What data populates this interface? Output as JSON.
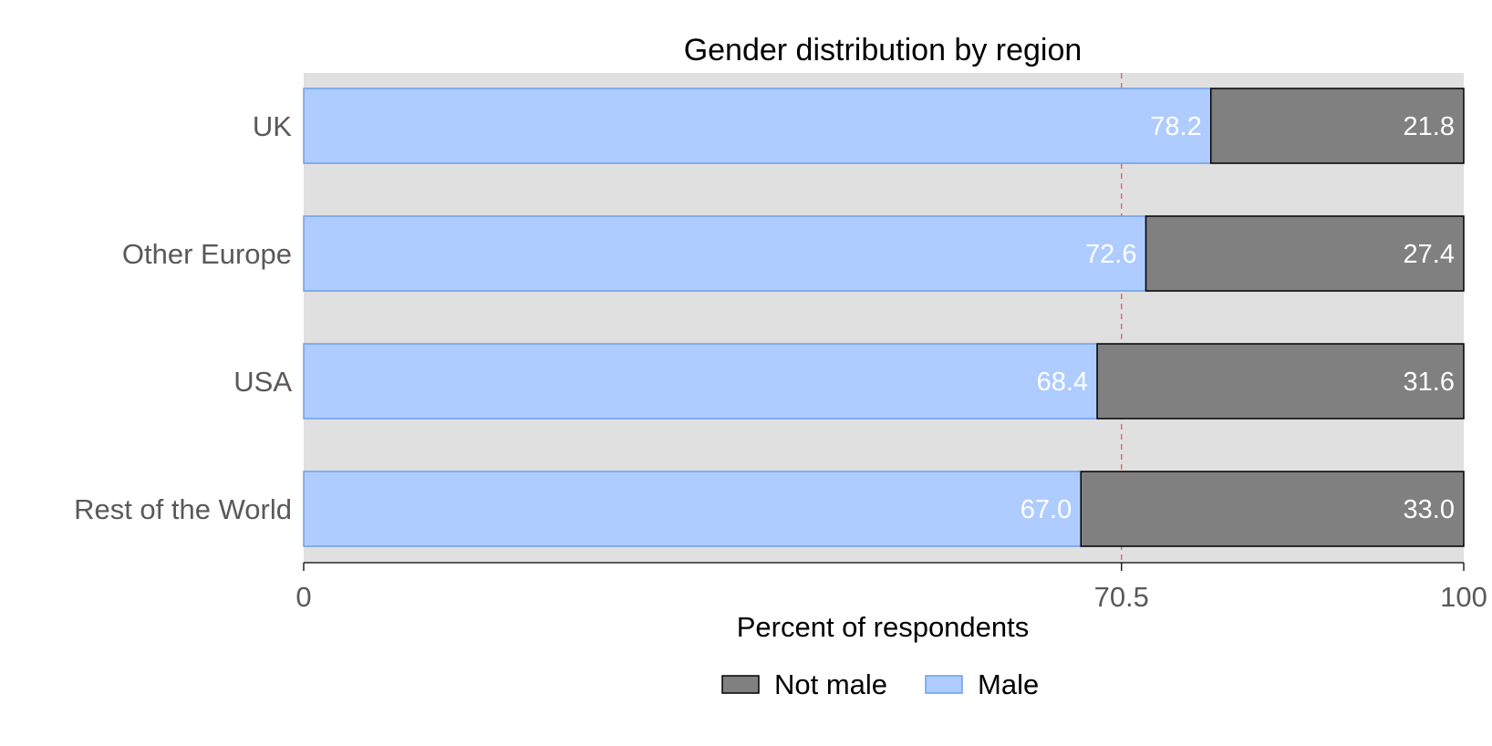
{
  "chart_data": {
    "type": "bar",
    "orientation": "horizontal",
    "stacked": true,
    "title": "Gender distribution by region",
    "xlabel": "Percent of respondents",
    "ylabel": "",
    "xlim": [
      0,
      100
    ],
    "x_ticks": [
      0,
      70.5,
      100
    ],
    "x_tick_labels": [
      "0",
      "70.5",
      "100"
    ],
    "reference_line": {
      "value": 70.5,
      "style": "dashed",
      "color": "#e05a5a"
    },
    "categories": [
      "UK",
      "Other Europe",
      "USA",
      "Rest of the World"
    ],
    "series": [
      {
        "name": "Male",
        "values": [
          78.2,
          72.6,
          68.4,
          67.0
        ],
        "labels": [
          "78.2",
          "72.6",
          "68.4",
          "67.0"
        ],
        "color": "#aeccff",
        "edge": "#6d9eeb"
      },
      {
        "name": "Not male",
        "values": [
          21.8,
          27.4,
          31.6,
          33.0
        ],
        "labels": [
          "21.8",
          "27.4",
          "31.6",
          "33.0"
        ],
        "color": "#808080",
        "edge": "#000000"
      }
    ],
    "legend": {
      "placement": "bottom",
      "order": [
        "Not male",
        "Male"
      ]
    },
    "panel_background": "#e0e0e0",
    "grid": false
  }
}
